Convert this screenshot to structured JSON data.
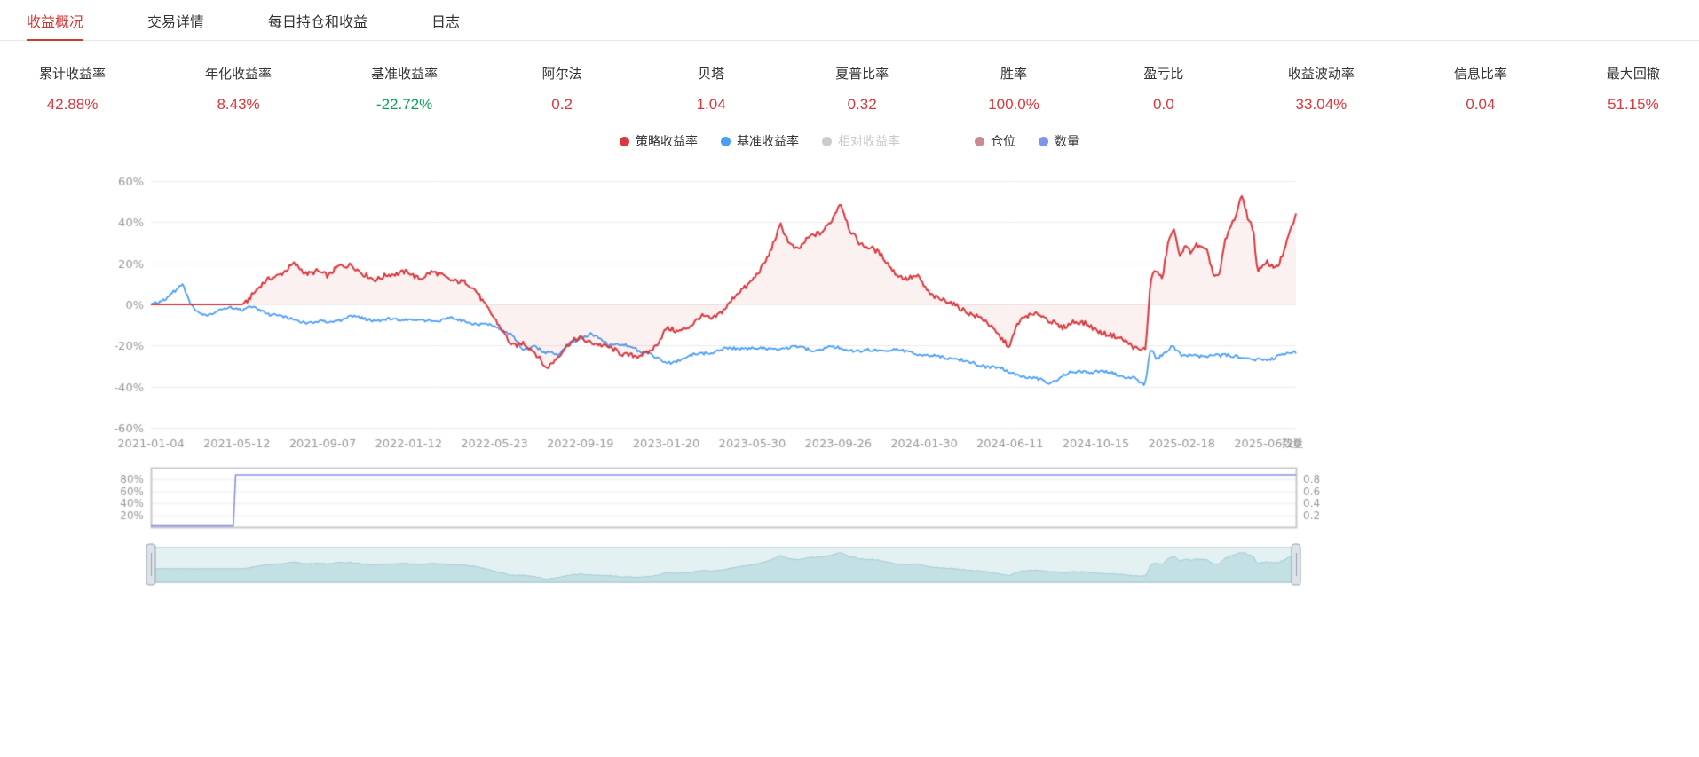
{
  "theme": {
    "accent_red": "#cf3a35",
    "up_color": "#d9383e",
    "down_color": "#09a35a",
    "axis_label_color": "#999999",
    "grid_line_color": "#ebebeb",
    "pos_border_color": "#c9c9c9"
  },
  "tabs": {
    "items": [
      {
        "label": "收益概况",
        "active": true
      },
      {
        "label": "交易详情",
        "active": false
      },
      {
        "label": "每日持仓和收益",
        "active": false
      },
      {
        "label": "日志",
        "active": false
      }
    ]
  },
  "metrics": {
    "items": [
      {
        "label": "累计收益率",
        "value": "42.88%",
        "direction": "up"
      },
      {
        "label": "年化收益率",
        "value": "8.43%",
        "direction": "up"
      },
      {
        "label": "基准收益率",
        "value": "-22.72%",
        "direction": "down"
      },
      {
        "label": "阿尔法",
        "value": "0.2",
        "direction": "up"
      },
      {
        "label": "贝塔",
        "value": "1.04",
        "direction": "up"
      },
      {
        "label": "夏普比率",
        "value": "0.32",
        "direction": "up"
      },
      {
        "label": "胜率",
        "value": "100.0%",
        "direction": "up"
      },
      {
        "label": "盈亏比",
        "value": "0.0",
        "direction": "up"
      },
      {
        "label": "收益波动率",
        "value": "33.04%",
        "direction": "up"
      },
      {
        "label": "信息比率",
        "value": "0.04",
        "direction": "up"
      },
      {
        "label": "最大回撤",
        "value": "51.15%",
        "direction": "up"
      }
    ]
  },
  "legend": {
    "groups": [
      {
        "items": [
          {
            "label": "策略收益率",
            "color": "#d9383e",
            "active": true
          },
          {
            "label": "基准收益率",
            "color": "#4b9ef7",
            "active": true
          },
          {
            "label": "相对收益率",
            "color": "#cccccc",
            "active": false
          }
        ]
      },
      {
        "items": [
          {
            "label": "仓位",
            "color": "#cb8a8f",
            "active": true
          },
          {
            "label": "数量",
            "color": "#7d95ea",
            "active": true
          }
        ]
      }
    ]
  },
  "chart_data": {
    "type": "line",
    "title": "",
    "x_axis": {
      "ticks": [
        "2021-01-04",
        "2021-05-12",
        "2021-09-07",
        "2022-01-12",
        "2022-05-23",
        "2022-09-19",
        "2023-01-20",
        "2023-05-30",
        "2023-09-26",
        "2024-01-30",
        "2024-06-11",
        "2024-10-15",
        "2025-02-18",
        "2025-06-20"
      ]
    },
    "y_axis": {
      "ticks": [
        "60%",
        "40%",
        "20%",
        "0%",
        "-20%",
        "-40%",
        "-60%"
      ],
      "min": -60,
      "max": 60,
      "unit": "%"
    },
    "legend_position": "top-center",
    "grid": "horizontal-only",
    "series": [
      {
        "name": "策略收益率",
        "color": "#d9383e",
        "area": true,
        "final_value": 42.88,
        "anchors": [
          [
            0,
            0
          ],
          [
            0.08,
            0
          ],
          [
            0.085,
            3
          ],
          [
            0.095,
            8
          ],
          [
            0.105,
            13
          ],
          [
            0.115,
            16
          ],
          [
            0.125,
            19
          ],
          [
            0.135,
            15
          ],
          [
            0.145,
            17
          ],
          [
            0.155,
            13
          ],
          [
            0.165,
            19
          ],
          [
            0.175,
            20
          ],
          [
            0.185,
            14
          ],
          [
            0.195,
            12
          ],
          [
            0.205,
            15
          ],
          [
            0.215,
            14
          ],
          [
            0.225,
            16
          ],
          [
            0.235,
            13
          ],
          [
            0.245,
            15
          ],
          [
            0.255,
            14
          ],
          [
            0.265,
            12
          ],
          [
            0.275,
            10
          ],
          [
            0.285,
            6
          ],
          [
            0.295,
            -2
          ],
          [
            0.305,
            -12
          ],
          [
            0.315,
            -20
          ],
          [
            0.325,
            -18
          ],
          [
            0.335,
            -24
          ],
          [
            0.345,
            -31
          ],
          [
            0.355,
            -25
          ],
          [
            0.365,
            -20
          ],
          [
            0.375,
            -16
          ],
          [
            0.385,
            -18
          ],
          [
            0.395,
            -21
          ],
          [
            0.405,
            -22
          ],
          [
            0.415,
            -24
          ],
          [
            0.425,
            -26
          ],
          [
            0.433,
            -24
          ],
          [
            0.44,
            -20
          ],
          [
            0.45,
            -12
          ],
          [
            0.46,
            -14
          ],
          [
            0.47,
            -10
          ],
          [
            0.48,
            -6
          ],
          [
            0.49,
            -8
          ],
          [
            0.5,
            -2
          ],
          [
            0.51,
            4
          ],
          [
            0.52,
            8
          ],
          [
            0.53,
            16
          ],
          [
            0.54,
            24
          ],
          [
            0.55,
            38
          ],
          [
            0.558,
            30
          ],
          [
            0.565,
            27
          ],
          [
            0.575,
            32
          ],
          [
            0.585,
            35
          ],
          [
            0.595,
            42
          ],
          [
            0.602,
            49
          ],
          [
            0.61,
            36
          ],
          [
            0.62,
            30
          ],
          [
            0.63,
            27
          ],
          [
            0.64,
            22
          ],
          [
            0.65,
            16
          ],
          [
            0.66,
            12
          ],
          [
            0.67,
            13
          ],
          [
            0.68,
            6
          ],
          [
            0.69,
            2
          ],
          [
            0.7,
            0
          ],
          [
            0.71,
            -2
          ],
          [
            0.72,
            -6
          ],
          [
            0.73,
            -9
          ],
          [
            0.74,
            -14
          ],
          [
            0.75,
            -21
          ],
          [
            0.757,
            -10
          ],
          [
            0.765,
            -5
          ],
          [
            0.775,
            -4
          ],
          [
            0.785,
            -9
          ],
          [
            0.795,
            -11
          ],
          [
            0.805,
            -8
          ],
          [
            0.815,
            -10
          ],
          [
            0.825,
            -12
          ],
          [
            0.835,
            -14
          ],
          [
            0.845,
            -17
          ],
          [
            0.855,
            -19
          ],
          [
            0.865,
            -22
          ],
          [
            0.869,
            -21
          ],
          [
            0.873,
            12
          ],
          [
            0.878,
            16
          ],
          [
            0.883,
            12
          ],
          [
            0.888,
            30
          ],
          [
            0.893,
            38
          ],
          [
            0.898,
            24
          ],
          [
            0.903,
            27
          ],
          [
            0.908,
            25
          ],
          [
            0.913,
            29
          ],
          [
            0.918,
            28
          ],
          [
            0.923,
            26
          ],
          [
            0.928,
            14
          ],
          [
            0.933,
            13
          ],
          [
            0.938,
            30
          ],
          [
            0.943,
            38
          ],
          [
            0.948,
            45
          ],
          [
            0.953,
            54
          ],
          [
            0.958,
            42
          ],
          [
            0.963,
            35
          ],
          [
            0.966,
            16
          ],
          [
            0.97,
            17
          ],
          [
            0.975,
            21
          ],
          [
            0.98,
            19
          ],
          [
            0.985,
            20
          ],
          [
            0.99,
            26
          ],
          [
            0.995,
            35
          ],
          [
            1,
            42.9
          ]
        ]
      },
      {
        "name": "基准收益率",
        "color": "#4b9ef7",
        "area": false,
        "final_value": -22.72,
        "anchors": [
          [
            0,
            0
          ],
          [
            0.012,
            3
          ],
          [
            0.02,
            6
          ],
          [
            0.028,
            9
          ],
          [
            0.033,
            2
          ],
          [
            0.04,
            -3
          ],
          [
            0.05,
            -6
          ],
          [
            0.06,
            -3
          ],
          [
            0.07,
            -1
          ],
          [
            0.08,
            -3
          ],
          [
            0.09,
            -1
          ],
          [
            0.1,
            -4
          ],
          [
            0.12,
            -7
          ],
          [
            0.14,
            -9
          ],
          [
            0.16,
            -8
          ],
          [
            0.18,
            -6
          ],
          [
            0.2,
            -8
          ],
          [
            0.22,
            -7
          ],
          [
            0.24,
            -8
          ],
          [
            0.26,
            -7
          ],
          [
            0.28,
            -9
          ],
          [
            0.3,
            -11
          ],
          [
            0.315,
            -14
          ],
          [
            0.325,
            -23
          ],
          [
            0.335,
            -20
          ],
          [
            0.345,
            -23
          ],
          [
            0.355,
            -25
          ],
          [
            0.365,
            -19
          ],
          [
            0.375,
            -16
          ],
          [
            0.385,
            -15
          ],
          [
            0.4,
            -19
          ],
          [
            0.42,
            -21
          ],
          [
            0.435,
            -24
          ],
          [
            0.45,
            -29
          ],
          [
            0.46,
            -27
          ],
          [
            0.48,
            -24
          ],
          [
            0.5,
            -22
          ],
          [
            0.52,
            -21
          ],
          [
            0.54,
            -22
          ],
          [
            0.56,
            -21
          ],
          [
            0.58,
            -22
          ],
          [
            0.6,
            -21
          ],
          [
            0.62,
            -23
          ],
          [
            0.64,
            -22
          ],
          [
            0.66,
            -23
          ],
          [
            0.68,
            -25
          ],
          [
            0.7,
            -26
          ],
          [
            0.72,
            -29
          ],
          [
            0.74,
            -31
          ],
          [
            0.755,
            -34
          ],
          [
            0.77,
            -36
          ],
          [
            0.785,
            -38
          ],
          [
            0.8,
            -34
          ],
          [
            0.815,
            -32
          ],
          [
            0.83,
            -33
          ],
          [
            0.845,
            -34
          ],
          [
            0.858,
            -36
          ],
          [
            0.868,
            -40
          ],
          [
            0.873,
            -21
          ],
          [
            0.878,
            -26
          ],
          [
            0.885,
            -24
          ],
          [
            0.892,
            -21
          ],
          [
            0.9,
            -25
          ],
          [
            0.91,
            -24
          ],
          [
            0.92,
            -26
          ],
          [
            0.93,
            -25
          ],
          [
            0.94,
            -24
          ],
          [
            0.95,
            -26
          ],
          [
            0.96,
            -27
          ],
          [
            0.97,
            -26
          ],
          [
            0.98,
            -27
          ],
          [
            0.99,
            -24
          ],
          [
            1,
            -22.7
          ]
        ]
      }
    ],
    "position_chart": {
      "left_ticks": [
        "80%",
        "60%",
        "40%",
        "20%"
      ],
      "right_ticks": [
        "0.8",
        "0.6",
        "0.4",
        "0.2"
      ],
      "right_axis_name": "数量",
      "series": {
        "name": "数量",
        "color": "#8a90e8",
        "anchors": [
          [
            0,
            0.02
          ],
          [
            0.072,
            0.02
          ],
          [
            0.074,
            0.88
          ],
          [
            1,
            0.88
          ]
        ]
      }
    },
    "datazoom": {
      "background": "#e3f1f3",
      "border": "#c6d8dc",
      "area_color": "#c3e0e5",
      "line_color": "#a4cbd2",
      "handle_fill": "#dde3e8",
      "handle_border": "#9aa4ad",
      "range": [
        0,
        100
      ]
    }
  }
}
